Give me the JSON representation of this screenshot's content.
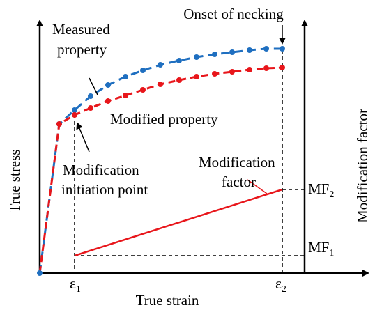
{
  "labels": {
    "onset": "Onset of necking",
    "measured": [
      "Measured",
      "property"
    ],
    "modified": "Modified property",
    "initiation": [
      "Modification",
      "initiation point"
    ],
    "factor": [
      "Modification",
      "factor"
    ],
    "y_axis": "True stress",
    "x_axis": "True strain",
    "y2_axis": "Modification factor",
    "mf2": {
      "main": "MF",
      "sub": "2"
    },
    "mf1": {
      "main": "MF",
      "sub": "1"
    },
    "eps1": {
      "main": "ε",
      "sub": "1"
    },
    "eps2": {
      "main": "ε",
      "sub": "2"
    }
  }
}
